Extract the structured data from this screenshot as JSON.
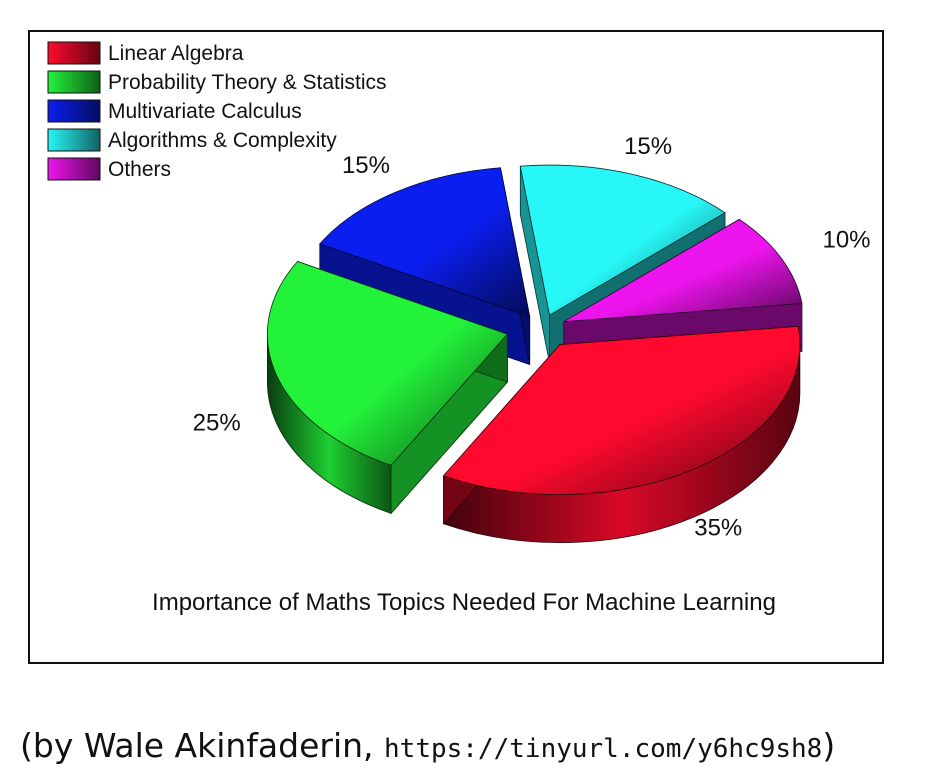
{
  "chart_data": {
    "type": "pie",
    "title": "Importance of Maths Topics Needed For Machine Learning",
    "legend_position": "top-left",
    "exploded": true,
    "three_d": true,
    "categories": [
      "Linear Algebra",
      "Probability Theory & Statistics",
      "Multivariate Calculus",
      "Algorithms & Complexity",
      "Others"
    ],
    "values": [
      35,
      25,
      15,
      15,
      10
    ],
    "labels": [
      "35%",
      "25%",
      "15%",
      "15%",
      "10%"
    ],
    "colors": [
      "#ff0a2e",
      "#22f33a",
      "#0a1ef0",
      "#28f7f7",
      "#ee14ee"
    ]
  },
  "caption": {
    "prefix": "(by Wale Akinfaderin, ",
    "url": "https://tinyurl.com/y6hc9sh8",
    "suffix": ")"
  }
}
